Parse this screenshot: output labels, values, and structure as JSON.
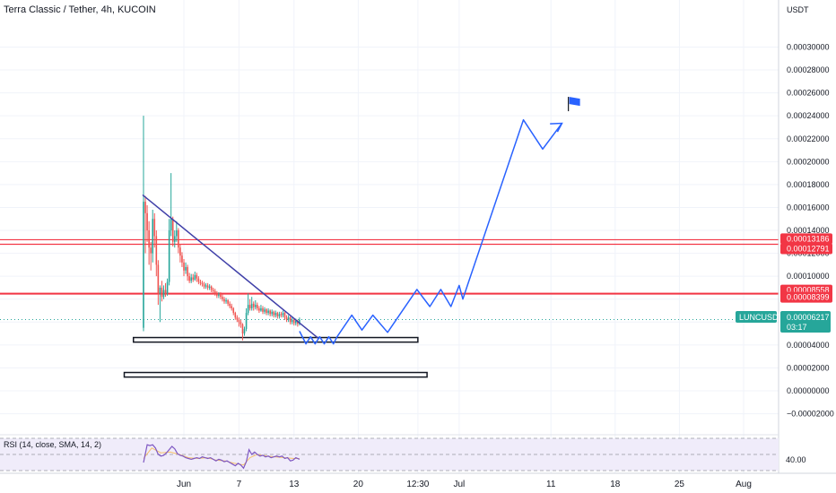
{
  "header": {
    "title": "Terra Classic / Tether, 4h, KUCOIN"
  },
  "price_axis": {
    "currency": "USDT",
    "ticks": [
      "0.00030000",
      "0.00028000",
      "0.00026000",
      "0.00024000",
      "0.00022000",
      "0.00020000",
      "0.00018000",
      "0.00016000",
      "0.00014000",
      "0.00012000",
      "0.00010000",
      "0.00008000",
      "0.00006000",
      "0.00004000",
      "0.00002000",
      "0.00000000",
      "−0.00002000"
    ]
  },
  "time_axis": {
    "labels": [
      "Jun",
      "7",
      "13",
      "20",
      "12:30",
      "Jul",
      "11",
      "18",
      "25",
      "Aug"
    ]
  },
  "price_tags": [
    {
      "label": "0.00013186",
      "value": 0.00013186,
      "color": "#f23645"
    },
    {
      "label": "0.00012791",
      "value": 0.00012791,
      "color": "#f23645"
    },
    {
      "label": "0.00008558",
      "value": 8.558e-05,
      "color": "#f23645"
    },
    {
      "label": "0.00008399",
      "value": 8.399e-05,
      "color": "#f23645"
    }
  ],
  "last_price": {
    "symbol": "LUNCUSDT",
    "value_label": "0.00006217",
    "countdown": "03:17",
    "value": 6.217e-05,
    "color": "#26a69a"
  },
  "rsi": {
    "label": "RSI (14, close, SMA, 14, 2)",
    "level_label": "40.00"
  },
  "colors": {
    "up": "#26a69a",
    "down": "#ef5350",
    "resistance": "#f23645",
    "trendline": "#3f3fa8",
    "projection": "#2962ff",
    "rsi_line": "#7e57c2",
    "rsi_band": "#f0ecfa"
  },
  "chart_data": {
    "type": "candlestick",
    "title": "Terra Classic / Tether, 4h, KUCOIN",
    "ylabel": "USDT",
    "ylim": [
      -2e-05,
      0.00031
    ],
    "x_range_days": [
      -10,
      64
    ],
    "x_tick_days": {
      "Jun": 0,
      "7": 6,
      "13": 12,
      "20": 19,
      "12:30": 25.5,
      "Jul": 30,
      "11": 40,
      "18": 47,
      "25": 54,
      "Aug": 61
    },
    "horizontal_lines": [
      {
        "name": "0.00013186",
        "value": 0.00013186
      },
      {
        "name": "0.00012791",
        "value": 0.00012791
      },
      {
        "name": "0.00008558",
        "value": 8.558e-05
      },
      {
        "name": "0.00008399",
        "value": 8.399e-05
      }
    ],
    "trendline": [
      {
        "day": -4.5,
        "value": 0.000171
      },
      {
        "day": 14.7,
        "value": 4.55e-05
      }
    ],
    "support_zones": [
      {
        "day_start": -5.5,
        "day_end": 25.5,
        "value_low": 4.25e-05,
        "value_high": 4.65e-05
      },
      {
        "day_start": -6.5,
        "day_end": 26.5,
        "value_low": 1.2e-05,
        "value_high": 1.6e-05
      }
    ],
    "projection_path": [
      [
        12.6,
        5.2e-05
      ],
      [
        13.3,
        4.1e-05
      ],
      [
        13.8,
        4.72e-05
      ],
      [
        14.3,
        4.1e-05
      ],
      [
        14.8,
        4.72e-05
      ],
      [
        15.3,
        4.1e-05
      ],
      [
        15.8,
        4.72e-05
      ],
      [
        16.3,
        4.1e-05
      ],
      [
        16.7,
        4.72e-05
      ],
      [
        18.3,
        6.6e-05
      ],
      [
        19.4,
        5.3e-05
      ],
      [
        20.6,
        6.6e-05
      ],
      [
        22.2,
        5.1e-05
      ],
      [
        25.4,
        8.85e-05
      ],
      [
        26.8,
        7.35e-05
      ],
      [
        28.0,
        8.85e-05
      ],
      [
        29.1,
        7.35e-05
      ],
      [
        30.0,
        9.2e-05
      ],
      [
        30.4,
        8e-05
      ],
      [
        30.9,
        9.2e-05
      ],
      [
        37.0,
        0.0002365
      ],
      [
        39.1,
        0.000211
      ],
      [
        41.2,
        0.0002335
      ]
    ],
    "projection_arrowhead": [
      [
        39.9,
        0.000233
      ],
      [
        41.2,
        0.0002335
      ],
      [
        40.7,
        0.000226
      ]
    ],
    "flag": {
      "day": 41.9,
      "value": 0.000244
    },
    "candles": [
      [
        -4.4,
        5.5e-05,
        0.000165,
        0.00024,
        5.2e-05
      ],
      [
        -4.2,
        0.000165,
        0.000155,
        0.00017,
        0.00012
      ],
      [
        -4.0,
        0.000155,
        0.00014,
        0.000162,
        0.00013
      ],
      [
        -3.8,
        0.00014,
        0.000125,
        0.000148,
        0.00011
      ],
      [
        -3.6,
        0.000125,
        0.00012,
        0.00013,
        0.000105
      ],
      [
        -3.4,
        0.00012,
        0.00015,
        0.000158,
        0.000112
      ],
      [
        -3.2,
        0.00015,
        0.000135,
        0.000155,
        0.000125
      ],
      [
        -3.0,
        0.000135,
        0.00011,
        0.00014,
        0.0001
      ],
      [
        -2.8,
        0.00011,
        8.5e-05,
        0.000114,
        7.5e-05
      ],
      [
        -2.6,
        8.5e-05,
        9e-05,
        9.2e-05,
        6e-05
      ],
      [
        -2.4,
        9e-05,
        8.2e-05,
        9.6e-05,
        7.8e-05
      ],
      [
        -2.2,
        8.2e-05,
        8.8e-05,
        9.2e-05,
        8e-05
      ],
      [
        -2.0,
        8.8e-05,
        8.5e-05,
        9.4e-05,
        8.2e-05
      ],
      [
        -1.8,
        8.5e-05,
        9.5e-05,
        9.8e-05,
        8.3e-05
      ],
      [
        -1.6,
        9.5e-05,
        0.00014,
        0.00015,
        9.2e-05
      ],
      [
        -1.4,
        0.00014,
        0.00015,
        0.00019,
        0.000135
      ],
      [
        -1.2,
        0.00015,
        0.00013,
        0.000152,
        0.000126
      ],
      [
        -1.0,
        0.00013,
        0.000135,
        0.00014,
        0.000125
      ],
      [
        -0.8,
        0.000135,
        0.00014,
        0.000148,
        0.00013
      ],
      [
        -0.6,
        0.00014,
        0.000125,
        0.000142,
        0.00012
      ],
      [
        -0.4,
        0.000125,
        0.000118,
        0.000128,
        0.000112
      ],
      [
        -0.2,
        0.000118,
        0.000112,
        0.000121,
        0.000108
      ],
      [
        0.0,
        0.000112,
        0.000105,
        0.000115,
        0.0001
      ],
      [
        0.2,
        0.000105,
        0.000108,
        0.000112,
        0.000102
      ],
      [
        0.4,
        0.000108,
        0.0001,
        0.00011,
        9.6e-05
      ],
      [
        0.6,
        0.0001,
        9.6e-05,
        0.000103,
        9.4e-05
      ],
      [
        0.8,
        9.6e-05,
        9.9e-05,
        0.000102,
        9.4e-05
      ],
      [
        1.0,
        9.9e-05,
        9.7e-05,
        0.000102,
        9.5e-05
      ],
      [
        1.2,
        9.7e-05,
        0.000101,
        0.000104,
        9.6e-05
      ],
      [
        1.4,
        0.000101,
        9.8e-05,
        0.000103,
        9.5e-05
      ],
      [
        1.6,
        9.8e-05,
        9.5e-05,
        0.0001,
        9.3e-05
      ],
      [
        1.8,
        9.5e-05,
        9.4e-05,
        9.7e-05,
        9.2e-05
      ],
      [
        2.0,
        9.4e-05,
        9.3e-05,
        9.6e-05,
        9.1e-05
      ],
      [
        2.2,
        9.3e-05,
        9.1e-05,
        9.5e-05,
        8.9e-05
      ],
      [
        2.4,
        9.1e-05,
        9.2e-05,
        9.4e-05,
        8.9e-05
      ],
      [
        2.6,
        9.2e-05,
        9e-05,
        9.4e-05,
        8.8e-05
      ],
      [
        2.8,
        9e-05,
        9.1e-05,
        9.3e-05,
        8.8e-05
      ],
      [
        3.0,
        9.1e-05,
        8.8e-05,
        9.2e-05,
        8.6e-05
      ],
      [
        3.2,
        8.8e-05,
        8.7e-05,
        9e-05,
        8.5e-05
      ],
      [
        3.4,
        8.7e-05,
        8.5e-05,
        8.9e-05,
        8.3e-05
      ],
      [
        3.6,
        8.5e-05,
        8.3e-05,
        8.7e-05,
        8.1e-05
      ],
      [
        3.8,
        8.3e-05,
        8.4e-05,
        8.6e-05,
        8.1e-05
      ],
      [
        4.0,
        8.4e-05,
        8.2e-05,
        8.6e-05,
        8e-05
      ],
      [
        4.2,
        8.2e-05,
        8e-05,
        8.4e-05,
        7.8e-05
      ],
      [
        4.4,
        8e-05,
        7.8e-05,
        8.2e-05,
        7.6e-05
      ],
      [
        4.6,
        7.8e-05,
        7.9e-05,
        8.1e-05,
        7.6e-05
      ],
      [
        4.8,
        7.9e-05,
        7.6e-05,
        8e-05,
        7.4e-05
      ],
      [
        5.0,
        7.6e-05,
        7.4e-05,
        7.8e-05,
        7.2e-05
      ],
      [
        5.2,
        7.4e-05,
        7.2e-05,
        7.6e-05,
        7e-05
      ],
      [
        5.4,
        7.2e-05,
        6.8e-05,
        7.3e-05,
        6.6e-05
      ],
      [
        5.6,
        6.8e-05,
        6.4e-05,
        6.9e-05,
        6.2e-05
      ],
      [
        5.8,
        6.4e-05,
        6.2e-05,
        6.6e-05,
        6e-05
      ],
      [
        6.0,
        6.2e-05,
        6e-05,
        6.4e-05,
        5.6e-05
      ],
      [
        6.2,
        6e-05,
        5.8e-05,
        6.2e-05,
        5.5e-05
      ],
      [
        6.4,
        5.8e-05,
        5e-05,
        5.9e-05,
        4.4e-05
      ],
      [
        6.6,
        5e-05,
        5.4e-05,
        5.6e-05,
        4.8e-05
      ],
      [
        6.8,
        5.4e-05,
        6.8e-05,
        7.2e-05,
        5.2e-05
      ],
      [
        7.0,
        6.8e-05,
        7.5e-05,
        8.5e-05,
        6.6e-05
      ],
      [
        7.2,
        7.5e-05,
        7.2e-05,
        8e-05,
        7e-05
      ],
      [
        7.4,
        7.2e-05,
        7.6e-05,
        8.2e-05,
        7e-05
      ],
      [
        7.6,
        7.6e-05,
        7.3e-05,
        7.8e-05,
        7e-05
      ],
      [
        7.8,
        7.3e-05,
        7.5e-05,
        7.9e-05,
        7.1e-05
      ],
      [
        8.0,
        7.5e-05,
        7.2e-05,
        7.7e-05,
        7e-05
      ],
      [
        8.2,
        7.2e-05,
        7e-05,
        7.4e-05,
        6.8e-05
      ],
      [
        8.4,
        7e-05,
        7.2e-05,
        7.5e-05,
        6.9e-05
      ],
      [
        8.6,
        7.2e-05,
        6.9e-05,
        7.4e-05,
        6.7e-05
      ],
      [
        8.8,
        6.9e-05,
        7.1e-05,
        7.3e-05,
        6.7e-05
      ],
      [
        9.0,
        7.1e-05,
        6.8e-05,
        7.2e-05,
        6.6e-05
      ],
      [
        9.2,
        6.8e-05,
        7e-05,
        7.2e-05,
        6.6e-05
      ],
      [
        9.4,
        7e-05,
        6.7e-05,
        7.1e-05,
        6.5e-05
      ],
      [
        9.6,
        6.7e-05,
        6.9e-05,
        7.1e-05,
        6.5e-05
      ],
      [
        9.8,
        6.9e-05,
        6.6e-05,
        7e-05,
        6.4e-05
      ],
      [
        10.0,
        6.6e-05,
        6.8e-05,
        7e-05,
        6.4e-05
      ],
      [
        10.2,
        6.8e-05,
        6.5e-05,
        6.9e-05,
        6.3e-05
      ],
      [
        10.4,
        6.5e-05,
        6.7e-05,
        6.9e-05,
        6.3e-05
      ],
      [
        10.6,
        6.7e-05,
        6.6e-05,
        6.9e-05,
        6.4e-05
      ],
      [
        10.8,
        6.6e-05,
        6.8e-05,
        7e-05,
        6.4e-05
      ],
      [
        11.0,
        6.8e-05,
        6.4e-05,
        6.9e-05,
        6.2e-05
      ],
      [
        11.2,
        6.4e-05,
        6.2e-05,
        6.6e-05,
        6e-05
      ],
      [
        11.4,
        6.2e-05,
        6.4e-05,
        6.6e-05,
        6e-05
      ],
      [
        11.6,
        6.4e-05,
        6e-05,
        6.5e-05,
        5.8e-05
      ],
      [
        11.8,
        6e-05,
        6.2e-05,
        6.4e-05,
        5.8e-05
      ],
      [
        12.0,
        6.2e-05,
        5.9e-05,
        6.3e-05,
        5.7e-05
      ],
      [
        12.2,
        5.9e-05,
        6.1e-05,
        6.3e-05,
        5.7e-05
      ],
      [
        12.4,
        6.1e-05,
        5.85e-05,
        6.2e-05,
        5.6e-05
      ],
      [
        12.6,
        5.85e-05,
        6.217e-05,
        6.4e-05,
        5.7e-05
      ]
    ],
    "rsi_path": [
      [
        -4.4,
        40
      ],
      [
        -4.0,
        62
      ],
      [
        -3.7,
        61
      ],
      [
        -3.4,
        62
      ],
      [
        -3.1,
        58
      ],
      [
        -2.8,
        50
      ],
      [
        -2.5,
        48
      ],
      [
        -2.2,
        49
      ],
      [
        -1.9,
        52
      ],
      [
        -1.6,
        56
      ],
      [
        -1.3,
        60
      ],
      [
        -1.0,
        57
      ],
      [
        -0.7,
        51
      ],
      [
        -0.4,
        49
      ],
      [
        -0.1,
        48
      ],
      [
        0.2,
        46
      ],
      [
        0.5,
        45
      ],
      [
        0.8,
        44
      ],
      [
        1.1,
        45
      ],
      [
        1.4,
        46
      ],
      [
        1.7,
        45
      ],
      [
        2.0,
        47
      ],
      [
        2.3,
        46
      ],
      [
        2.6,
        45
      ],
      [
        2.9,
        46
      ],
      [
        3.2,
        44
      ],
      [
        3.5,
        42
      ],
      [
        3.8,
        44
      ],
      [
        4.1,
        43
      ],
      [
        4.4,
        41
      ],
      [
        4.7,
        42
      ],
      [
        5.0,
        40
      ],
      [
        5.3,
        38
      ],
      [
        5.6,
        36
      ],
      [
        5.9,
        39
      ],
      [
        6.2,
        37
      ],
      [
        6.5,
        33
      ],
      [
        6.8,
        41
      ],
      [
        7.1,
        56
      ],
      [
        7.4,
        50
      ],
      [
        7.7,
        53
      ],
      [
        8.0,
        50
      ],
      [
        8.3,
        48
      ],
      [
        8.6,
        49
      ],
      [
        8.9,
        47
      ],
      [
        9.2,
        48
      ],
      [
        9.5,
        46
      ],
      [
        9.8,
        47
      ],
      [
        10.1,
        48
      ],
      [
        10.4,
        47
      ],
      [
        10.7,
        48
      ],
      [
        11.0,
        45
      ],
      [
        11.3,
        46
      ],
      [
        11.6,
        42
      ],
      [
        11.9,
        43
      ],
      [
        12.2,
        46
      ],
      [
        12.6,
        44
      ]
    ],
    "rsi_ma_path": [
      [
        -4.4,
        45
      ],
      [
        -3.5,
        58
      ],
      [
        -2.5,
        52
      ],
      [
        -1.5,
        53
      ],
      [
        -0.5,
        50
      ],
      [
        0.5,
        46
      ],
      [
        1.5,
        45
      ],
      [
        2.5,
        46
      ],
      [
        3.5,
        43
      ],
      [
        4.5,
        42
      ],
      [
        5.5,
        39
      ],
      [
        6.5,
        37
      ],
      [
        7.2,
        46
      ],
      [
        8.0,
        50
      ],
      [
        9.0,
        48
      ],
      [
        10.0,
        47
      ],
      [
        11.0,
        46
      ],
      [
        12.0,
        45
      ],
      [
        12.6,
        45
      ]
    ],
    "rsi_levels": [
      70,
      50,
      30
    ]
  }
}
